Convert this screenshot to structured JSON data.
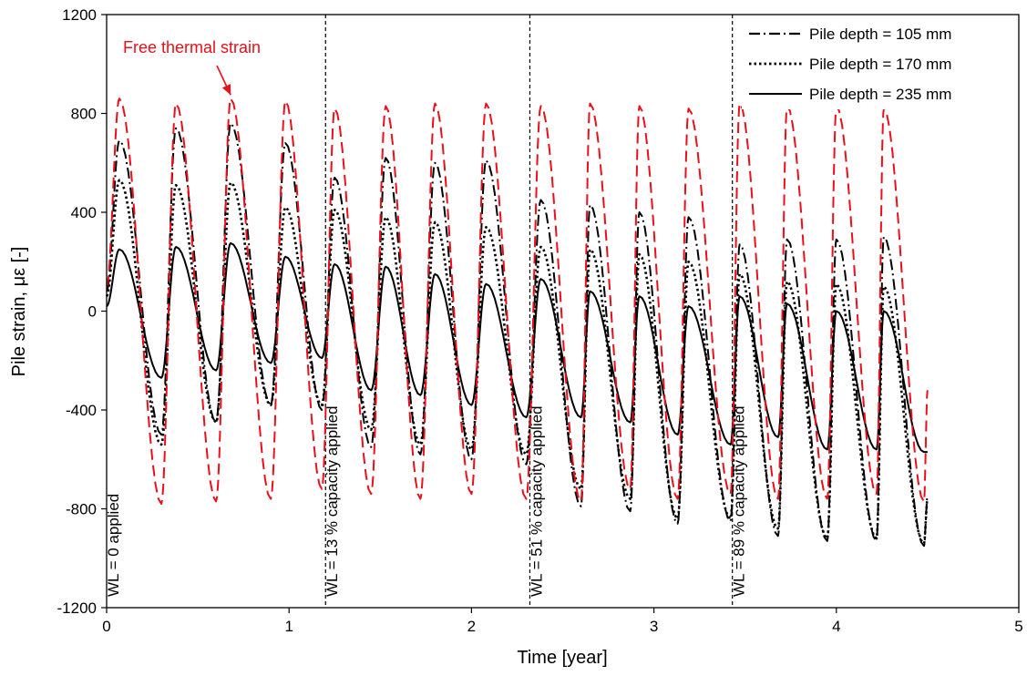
{
  "chart_data": {
    "type": "line",
    "xlabel": "Time [year]",
    "ylabel": "Pile strain, με [-]",
    "xlim": [
      0,
      5
    ],
    "ylim": [
      -1200,
      1200
    ],
    "xticks": [
      "0",
      "1",
      "2",
      "3",
      "4",
      "5"
    ],
    "yticks": [
      "-1200",
      "-800",
      "-400",
      "0",
      "400",
      "800",
      "1200"
    ],
    "grid": false,
    "legend_position": "top-right",
    "colors": {
      "free_thermal": "#e8111b",
      "piles": "#000000"
    },
    "annotation": {
      "text": "Free thermal strain",
      "color": "#e8111b",
      "arrow_to_x": 0.68,
      "arrow_to_y": 860
    },
    "stage_lines": [
      {
        "x": 0.0,
        "label": "WL = 0 applied"
      },
      {
        "x": 1.2,
        "label": "WL = 13 % capacity applied"
      },
      {
        "x": 2.32,
        "label": "WL = 51 % capacity applied"
      },
      {
        "x": 3.43,
        "label": "WL = 89 % capacity applied"
      }
    ],
    "series_legend": [
      {
        "name": "Pile depth = 105 mm",
        "style": "dashdot"
      },
      {
        "name": "Pile depth = 170 mm",
        "style": "dotted"
      },
      {
        "name": "Pile depth = 235 mm",
        "style": "solid"
      }
    ],
    "cycles": [
      {
        "start": 0.0,
        "peak": 0.07,
        "trough": 0.3,
        "free_max": 860,
        "free_min": -780,
        "d105_max": 690,
        "d105_min": -500,
        "d170_max": 530,
        "d170_min": -540,
        "d235_max": 250,
        "d235_min": -270
      },
      {
        "start": 0.3,
        "peak": 0.38,
        "trough": 0.6,
        "free_max": 840,
        "free_min": -770,
        "d105_max": 740,
        "d105_min": -450,
        "d170_max": 510,
        "d170_min": -450,
        "d235_max": 260,
        "d235_min": -240
      },
      {
        "start": 0.6,
        "peak": 0.68,
        "trough": 0.9,
        "free_max": 860,
        "free_min": -760,
        "d105_max": 760,
        "d105_min": -380,
        "d170_max": 520,
        "d170_min": -380,
        "d235_max": 275,
        "d235_min": -210
      },
      {
        "start": 0.9,
        "peak": 0.98,
        "trough": 1.18,
        "free_max": 850,
        "free_min": -720,
        "d105_max": 680,
        "d105_min": -400,
        "d170_max": 420,
        "d170_min": -380,
        "d235_max": 220,
        "d235_min": -190
      },
      {
        "start": 1.18,
        "peak": 1.25,
        "trough": 1.45,
        "free_max": 820,
        "free_min": -740,
        "d105_max": 540,
        "d105_min": -550,
        "d170_max": 410,
        "d170_min": -480,
        "d235_max": 190,
        "d235_min": -320
      },
      {
        "start": 1.45,
        "peak": 1.53,
        "trough": 1.72,
        "free_max": 830,
        "free_min": -760,
        "d105_max": 620,
        "d105_min": -580,
        "d170_max": 380,
        "d170_min": -540,
        "d235_max": 180,
        "d235_min": -340
      },
      {
        "start": 1.72,
        "peak": 1.8,
        "trough": 2.0,
        "free_max": 840,
        "free_min": -740,
        "d105_max": 600,
        "d105_min": -600,
        "d170_max": 360,
        "d170_min": -560,
        "d235_max": 150,
        "d235_min": -380
      },
      {
        "start": 2.0,
        "peak": 2.08,
        "trough": 2.3,
        "free_max": 840,
        "free_min": -760,
        "d105_max": 610,
        "d105_min": -620,
        "d170_max": 340,
        "d170_min": -580,
        "d235_max": 110,
        "d235_min": -430
      },
      {
        "start": 2.3,
        "peak": 2.38,
        "trough": 2.6,
        "free_max": 830,
        "free_min": -770,
        "d105_max": 450,
        "d105_min": -790,
        "d170_max": 260,
        "d170_min": -720,
        "d235_max": 130,
        "d235_min": -430
      },
      {
        "start": 2.6,
        "peak": 2.65,
        "trough": 2.87,
        "free_max": 840,
        "free_min": -720,
        "d105_max": 430,
        "d105_min": -810,
        "d170_max": 250,
        "d170_min": -760,
        "d235_max": 80,
        "d235_min": -450
      },
      {
        "start": 2.87,
        "peak": 2.92,
        "trough": 3.13,
        "free_max": 830,
        "free_min": -760,
        "d105_max": 400,
        "d105_min": -860,
        "d170_max": 230,
        "d170_min": -840,
        "d235_max": 60,
        "d235_min": -500
      },
      {
        "start": 3.13,
        "peak": 3.19,
        "trough": 3.42,
        "free_max": 820,
        "free_min": -740,
        "d105_max": 380,
        "d105_min": -850,
        "d170_max": 200,
        "d170_min": -840,
        "d235_max": 20,
        "d235_min": -540
      },
      {
        "start": 3.42,
        "peak": 3.47,
        "trough": 3.68,
        "free_max": 840,
        "free_min": -760,
        "d105_max": 270,
        "d105_min": -910,
        "d170_max": 150,
        "d170_min": -880,
        "d235_max": 60,
        "d235_min": -510
      },
      {
        "start": 3.68,
        "peak": 3.73,
        "trough": 3.95,
        "free_max": 830,
        "free_min": -760,
        "d105_max": 290,
        "d105_min": -930,
        "d170_max": 120,
        "d170_min": -920,
        "d235_max": 30,
        "d235_min": -560
      },
      {
        "start": 3.95,
        "peak": 4.0,
        "trough": 4.22,
        "free_max": 830,
        "free_min": -740,
        "d105_max": 290,
        "d105_min": -930,
        "d170_max": 110,
        "d170_min": -920,
        "d235_max": 0,
        "d235_min": -560
      },
      {
        "start": 4.22,
        "peak": 4.26,
        "trough": 4.48,
        "free_max": 820,
        "free_min": -770,
        "d105_max": 300,
        "d105_min": -950,
        "d170_max": 100,
        "d170_min": -940,
        "d235_max": 0,
        "d235_min": -570
      }
    ],
    "end": {
      "x": 4.5,
      "free": -320,
      "d105": -750,
      "d170": -760,
      "d235": -570
    }
  }
}
